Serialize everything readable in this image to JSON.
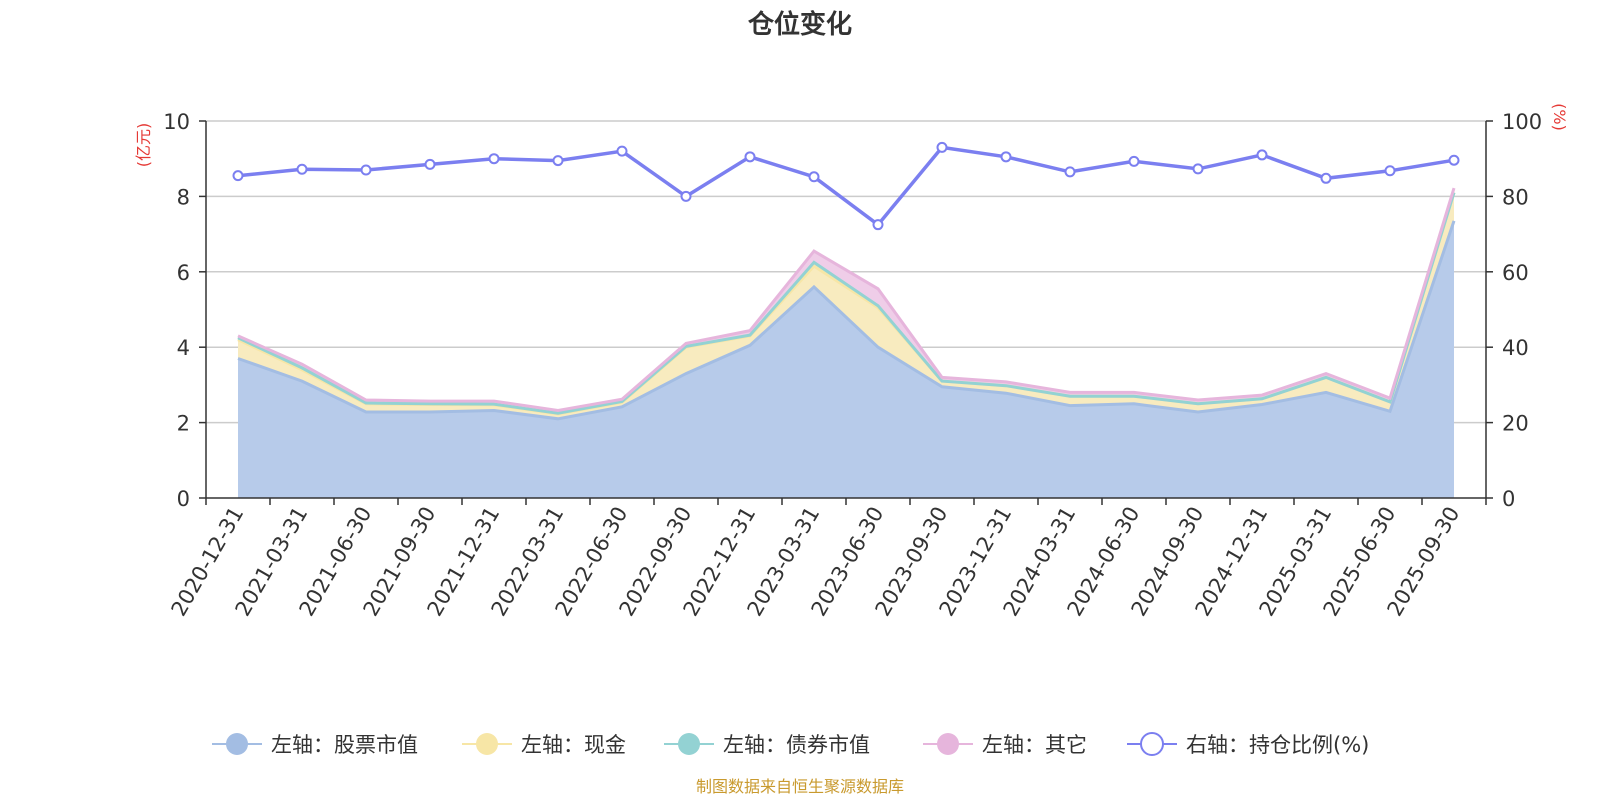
{
  "chart_data": {
    "type": "area",
    "title": "仓位变化",
    "left_unit": "(亿元)",
    "right_unit": "(%)",
    "left_ylim": [
      0,
      10
    ],
    "left_ticks": [
      0,
      2,
      4,
      6,
      8,
      10
    ],
    "right_ylim": [
      0,
      100
    ],
    "right_ticks": [
      0,
      20,
      40,
      60,
      80,
      100
    ],
    "categories": [
      "2020-12-31",
      "2021-03-31",
      "2021-06-30",
      "2021-09-30",
      "2021-12-31",
      "2022-03-31",
      "2022-06-30",
      "2022-09-30",
      "2022-12-31",
      "2023-03-31",
      "2023-06-30",
      "2023-09-30",
      "2023-12-31",
      "2024-03-31",
      "2024-06-30",
      "2024-09-30",
      "2024-12-31",
      "2025-03-31",
      "2025-06-30",
      "2025-09-30"
    ],
    "series": [
      {
        "name": "左轴：股票市值",
        "axis": "left",
        "stacked": true,
        "color": "#a3bde3",
        "fill": "#b7cbea",
        "values": [
          3.7,
          3.1,
          2.28,
          2.28,
          2.32,
          2.1,
          2.42,
          3.3,
          4.05,
          5.6,
          4.0,
          2.95,
          2.78,
          2.45,
          2.5,
          2.28,
          2.48,
          2.8,
          2.3,
          7.35
        ]
      },
      {
        "name": "左轴：现金",
        "axis": "left",
        "stacked": true,
        "color": "#f7e6a6",
        "fill": "#f8ebbf",
        "values": [
          0.5,
          0.3,
          0.22,
          0.2,
          0.15,
          0.13,
          0.12,
          0.7,
          0.25,
          0.55,
          1.05,
          0.15,
          0.2,
          0.25,
          0.2,
          0.22,
          0.15,
          0.4,
          0.25,
          0.75
        ]
      },
      {
        "name": "左轴：债券市值",
        "axis": "left",
        "stacked": true,
        "color": "#93d2d3",
        "fill": "#b3dfe0",
        "values": [
          0.05,
          0.05,
          0.02,
          0.02,
          0.02,
          0.02,
          0.02,
          0.02,
          0.02,
          0.1,
          0.05,
          0.0,
          0.0,
          0.0,
          0.0,
          0.0,
          0.0,
          0.0,
          0.0,
          0.0
        ]
      },
      {
        "name": "左轴：其它",
        "axis": "left",
        "stacked": true,
        "color": "#e6b5dc",
        "fill": "#efcde8",
        "values": [
          0.05,
          0.1,
          0.08,
          0.07,
          0.08,
          0.07,
          0.06,
          0.08,
          0.12,
          0.3,
          0.45,
          0.1,
          0.1,
          0.1,
          0.1,
          0.1,
          0.1,
          0.1,
          0.1,
          0.12
        ]
      },
      {
        "name": "右轴：持仓比例(%)",
        "axis": "right",
        "stacked": false,
        "color": "#7b7ff0",
        "values": [
          85.5,
          87.2,
          87.0,
          88.5,
          90.0,
          89.5,
          92.0,
          80.0,
          90.5,
          85.2,
          72.5,
          93.0,
          90.5,
          86.5,
          89.3,
          87.3,
          91.0,
          84.8,
          86.8,
          89.6
        ]
      }
    ],
    "grid": true,
    "legend_position": "bottom-center"
  },
  "source": "制图数据来自恒生聚源数据库"
}
